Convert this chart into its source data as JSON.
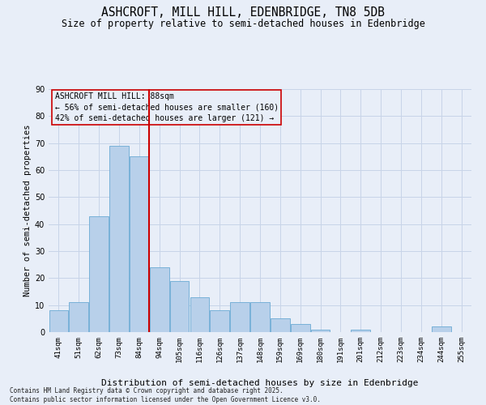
{
  "title": "ASHCROFT, MILL HILL, EDENBRIDGE, TN8 5DB",
  "subtitle": "Size of property relative to semi-detached houses in Edenbridge",
  "xlabel": "Distribution of semi-detached houses by size in Edenbridge",
  "ylabel": "Number of semi-detached properties",
  "categories": [
    "41sqm",
    "51sqm",
    "62sqm",
    "73sqm",
    "84sqm",
    "94sqm",
    "105sqm",
    "116sqm",
    "126sqm",
    "137sqm",
    "148sqm",
    "159sqm",
    "169sqm",
    "180sqm",
    "191sqm",
    "201sqm",
    "212sqm",
    "223sqm",
    "234sqm",
    "244sqm",
    "255sqm"
  ],
  "values": [
    8,
    11,
    43,
    69,
    65,
    24,
    19,
    13,
    8,
    11,
    11,
    5,
    3,
    1,
    0,
    1,
    0,
    0,
    0,
    2,
    0
  ],
  "bar_color": "#b8d0ea",
  "bar_edge_color": "#6aaad4",
  "grid_color": "#c8d4e8",
  "background_color": "#e8eef8",
  "vline_x_index": 4,
  "vline_color": "#cc0000",
  "annotation_box_text": "ASHCROFT MILL HILL: 88sqm\n← 56% of semi-detached houses are smaller (160)\n42% of semi-detached houses are larger (121) →",
  "annotation_box_color": "#cc0000",
  "footer": "Contains HM Land Registry data © Crown copyright and database right 2025.\nContains public sector information licensed under the Open Government Licence v3.0.",
  "ylim": [
    0,
    90
  ],
  "yticks": [
    0,
    10,
    20,
    30,
    40,
    50,
    60,
    70,
    80,
    90
  ],
  "title_fontsize": 10.5,
  "subtitle_fontsize": 8.5,
  "xlabel_fontsize": 8,
  "ylabel_fontsize": 7.5,
  "tick_fontsize": 6.5,
  "annotation_fontsize": 7,
  "footer_fontsize": 5.5
}
